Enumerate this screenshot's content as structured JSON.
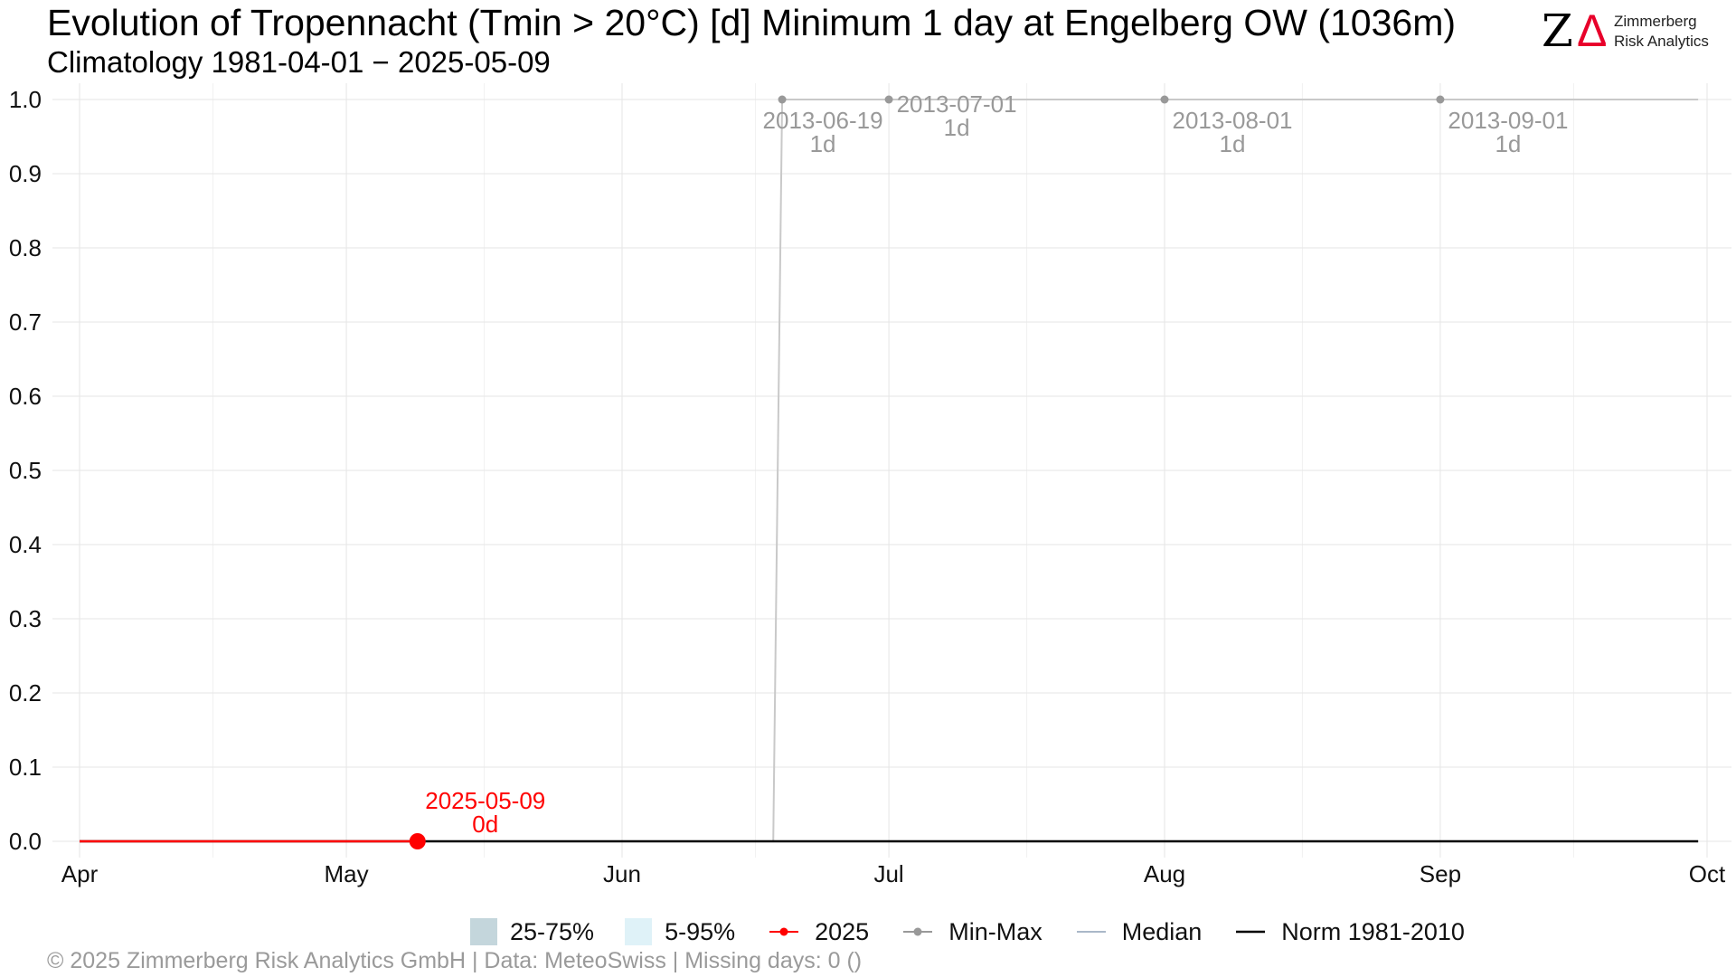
{
  "header": {
    "title": "Evolution of Tropennacht (Tmin > 20°C) [d] Minimum 1 day at Engelberg  OW (1036m)",
    "subtitle": "Climatology 1981-04-01 − 2025-05-09"
  },
  "logo": {
    "mark_z": "Z",
    "mark_delta": "Δ",
    "name_line1": "Zimmerberg",
    "name_line2": "Risk Analytics"
  },
  "legend": {
    "iqr_label": "25-75%",
    "p5_95_label": "5-95%",
    "current_label": "2025",
    "minmax_label": "Min-Max",
    "median_label": "Median",
    "norm_label": "Norm 1981-2010"
  },
  "footer": {
    "text": "©  2025 Zimmerberg Risk Analytics GmbH | Data: MeteoSwiss | Missing days: 0 ()"
  },
  "colors": {
    "current": "#ff0000",
    "minmax": "#999999",
    "median": "#aab8c8",
    "norm": "#000000",
    "iqr": "#c4d6dc",
    "p5_95": "#dff2f8",
    "grid": "#e6e6e6",
    "annotation": "#999999"
  },
  "chart_data": {
    "type": "line",
    "xlim": [
      "2025-04-01",
      "2025-10-01"
    ],
    "ylim": [
      0,
      1.0
    ],
    "x_ticks": [
      {
        "date": "2025-04-01",
        "label": "Apr"
      },
      {
        "date": "2025-05-01",
        "label": "May"
      },
      {
        "date": "2025-06-01",
        "label": "Jun"
      },
      {
        "date": "2025-07-01",
        "label": "Jul"
      },
      {
        "date": "2025-08-01",
        "label": "Aug"
      },
      {
        "date": "2025-09-01",
        "label": "Sep"
      },
      {
        "date": "2025-10-01",
        "label": "Oct"
      }
    ],
    "y_ticks": [
      "0.0",
      "0.1",
      "0.2",
      "0.3",
      "0.4",
      "0.5",
      "0.6",
      "0.7",
      "0.8",
      "0.9",
      "1.0"
    ],
    "series": [
      {
        "name": "2025",
        "points": [
          {
            "x": "2025-04-01",
            "y": 0
          },
          {
            "x": "2025-05-09",
            "y": 0
          }
        ]
      },
      {
        "name": "Min-Max",
        "points": [
          {
            "x": "2025-04-01",
            "y": 0
          },
          {
            "x": "2025-06-18",
            "y": 0
          },
          {
            "x": "2025-06-19",
            "y": 1
          },
          {
            "x": "2025-09-30",
            "y": 1
          }
        ]
      },
      {
        "name": "Norm 1981-2010",
        "points": [
          {
            "x": "2025-04-01",
            "y": 0
          },
          {
            "x": "2025-09-30",
            "y": 0
          }
        ]
      }
    ],
    "minmax_markers": [
      {
        "x": "2025-06-19",
        "y": 1,
        "date_label": "2013-06-19",
        "value_label": "1d"
      },
      {
        "x": "2025-07-01",
        "y": 1,
        "date_label": "2013-07-01",
        "value_label": "1d"
      },
      {
        "x": "2025-08-01",
        "y": 1,
        "date_label": "2013-08-01",
        "value_label": "1d"
      },
      {
        "x": "2025-09-01",
        "y": 1,
        "date_label": "2013-09-01",
        "value_label": "1d"
      }
    ],
    "current_marker": {
      "x": "2025-05-09",
      "y": 0,
      "date_label": "2025-05-09",
      "value_label": "0d"
    }
  }
}
